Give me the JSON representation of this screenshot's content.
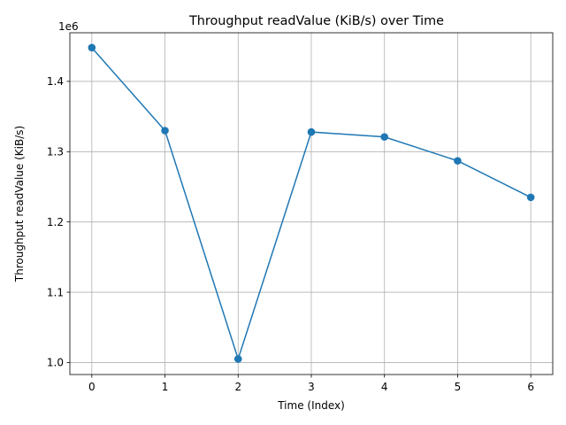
{
  "chart_data": {
    "type": "line",
    "title": "Throughput readValue (KiB/s) over Time",
    "xlabel": "Time (Index)",
    "ylabel": "Throughput readValue (KiB/s)",
    "y_offset_label": "1e6",
    "x": [
      0,
      1,
      2,
      3,
      4,
      5,
      6
    ],
    "series": [
      {
        "values": [
          1448000,
          1330000,
          1005000,
          1328000,
          1321000,
          1287000,
          1235000
        ],
        "color": "#1f77b4",
        "marker": "circle"
      }
    ],
    "xlim": [
      -0.3,
      6.3
    ],
    "ylim": [
      0.9829,
      1.4692
    ],
    "y_scale": 1000000,
    "xticks": [
      0,
      1,
      2,
      3,
      4,
      5,
      6
    ],
    "xtick_labels": [
      "0",
      "1",
      "2",
      "3",
      "4",
      "5",
      "6"
    ],
    "yticks": [
      1.0,
      1.1,
      1.2,
      1.3,
      1.4
    ],
    "ytick_labels": [
      "1.0",
      "1.1",
      "1.2",
      "1.3",
      "1.4"
    ],
    "grid": true,
    "legend": "none"
  }
}
